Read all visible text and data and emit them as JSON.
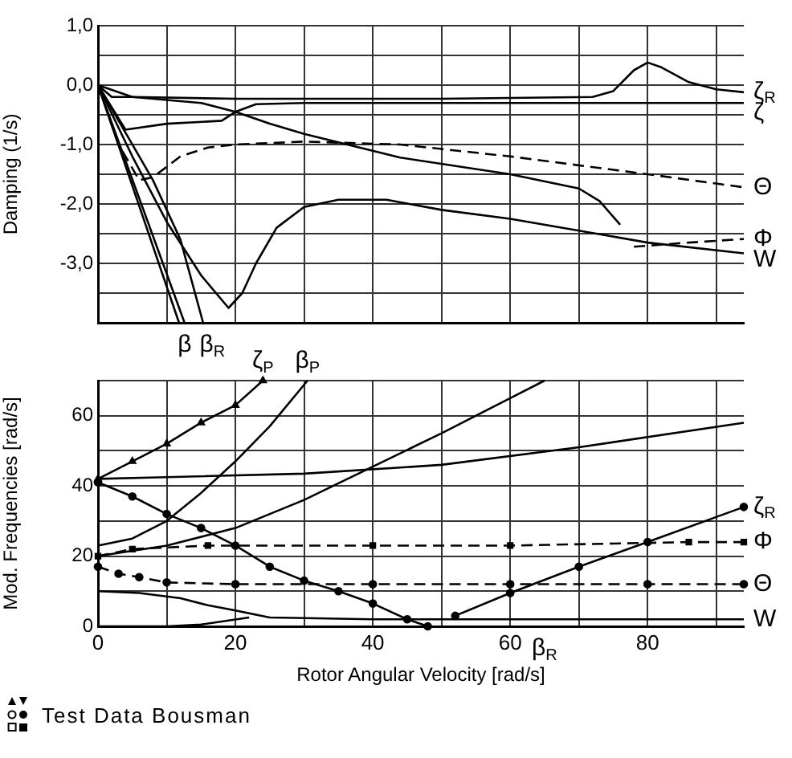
{
  "chart_data": [
    {
      "type": "line",
      "ylabel": "Damping (1/s)",
      "xlim": [
        0,
        94
      ],
      "ylim": [
        -4,
        1
      ],
      "tick_labels": "y",
      "grid": true,
      "xticks": [
        0,
        10,
        20,
        30,
        40,
        50,
        60,
        70,
        80,
        90
      ],
      "yticks": [
        {
          "value": 1,
          "label": "1,0"
        },
        {
          "value": 0.5,
          "label": null
        },
        {
          "value": 0,
          "label": "0,0"
        },
        {
          "value": -0.5,
          "label": null
        },
        {
          "value": -1,
          "label": "-1,0"
        },
        {
          "value": -1.5,
          "label": null
        },
        {
          "value": -2,
          "label": "-2,0"
        },
        {
          "value": -2.5,
          "label": null
        },
        {
          "value": -3,
          "label": "-3,0"
        },
        {
          "value": -3.5,
          "label": null
        },
        {
          "value": -4,
          "label": null
        }
      ],
      "series": [
        {
          "name": "ζ$_{R}$",
          "color": "#000000",
          "x": [
            0,
            2,
            5,
            20,
            50,
            72,
            75,
            78,
            80,
            82,
            86,
            90,
            94
          ],
          "values": [
            0,
            -0.2,
            -0.2,
            -0.23,
            -0.23,
            -0.2,
            -0.1,
            0.25,
            0.38,
            0.3,
            0.05,
            -0.07,
            -0.12
          ]
        },
        {
          "name": "ζ",
          "color": "#000000",
          "x": [
            0,
            4,
            10,
            18,
            20,
            23,
            30,
            94
          ],
          "values": [
            0,
            -0.75,
            -0.65,
            -0.6,
            -0.45,
            -0.32,
            -0.3,
            -0.3
          ]
        },
        {
          "color": "#000000",
          "x": [
            0,
            5,
            15,
            20,
            25,
            30,
            44,
            60,
            70,
            73,
            76
          ],
          "values": [
            0,
            -0.2,
            -0.3,
            -0.45,
            -0.65,
            -0.82,
            -1.22,
            -1.5,
            -1.74,
            -1.95,
            -2.35
          ]
        },
        {
          "name": "Θ",
          "color": "#000000",
          "line_style": "dashed",
          "x": [
            0,
            3,
            6,
            8,
            12,
            16,
            20,
            30,
            44,
            60,
            80,
            94
          ],
          "values": [
            0,
            -1,
            -1.6,
            -1.55,
            -1.2,
            -1.05,
            -1,
            -0.95,
            -1,
            -1.2,
            -1.5,
            -1.72
          ]
        },
        {
          "name": "Φ",
          "color": "#000000",
          "line_style": "dashed",
          "x": [
            78,
            86,
            94
          ],
          "values": [
            -2.72,
            -2.65,
            -2.59
          ]
        },
        {
          "name": "W",
          "color": "#000000",
          "x": [
            0,
            5,
            10,
            15,
            19,
            21,
            23,
            26,
            30,
            35,
            42,
            50,
            60,
            70,
            80,
            94
          ],
          "values": [
            0,
            -1.2,
            -2.3,
            -3.2,
            -3.75,
            -3.5,
            -3,
            -2.4,
            -2.05,
            -1.93,
            -1.93,
            -2.1,
            -2.25,
            -2.45,
            -2.65,
            -2.83
          ]
        },
        {
          "color": "#000000",
          "x": [
            0,
            11.8
          ],
          "values": [
            0,
            -4
          ]
        },
        {
          "name": "β",
          "color": "#000000",
          "x": [
            0,
            12.6
          ],
          "values": [
            0,
            -4
          ]
        },
        {
          "name": "β$_{R}$",
          "color": "#000000",
          "x": [
            0,
            4,
            8,
            12,
            15.3
          ],
          "values": [
            0,
            -0.8,
            -1.6,
            -2.6,
            -4
          ]
        }
      ]
    },
    {
      "type": "line",
      "xlabel": "Rotor Angular Velocity [rad/s]",
      "ylabel": "Mod. Frequencies [rad/s]",
      "xlim": [
        0,
        94
      ],
      "ylim": [
        0,
        70
      ],
      "grid": true,
      "xticks": [
        0,
        {
          "value": 10,
          "label": null
        },
        20,
        {
          "value": 30,
          "label": null
        },
        40,
        {
          "value": 50,
          "label": null
        },
        60,
        {
          "value": 70,
          "label": null
        },
        80,
        {
          "value": 90,
          "label": null
        }
      ],
      "yticks": [
        0,
        {
          "value": 10,
          "label": null
        },
        20,
        {
          "value": 30,
          "label": null
        },
        40,
        {
          "value": 50,
          "label": null
        },
        60,
        {
          "value": 70,
          "label": null
        }
      ],
      "series": [
        {
          "name": "ζ$_{P}$",
          "color": "#000000",
          "marker": "triangle",
          "x": [
            0,
            5,
            10,
            15,
            20,
            24
          ],
          "values": [
            42,
            47,
            52,
            58,
            63,
            70
          ]
        },
        {
          "name": "β$_{P}$",
          "color": "#000000",
          "x": [
            0,
            5,
            10,
            15,
            20,
            25,
            30.5
          ],
          "values": [
            23,
            25,
            30,
            38,
            47,
            57,
            70
          ]
        },
        {
          "color": "#000000",
          "x": [
            0,
            10,
            20,
            30,
            40,
            50,
            60,
            65
          ],
          "values": [
            20,
            23,
            28,
            36,
            45.5,
            55,
            65,
            70
          ]
        },
        {
          "color": "#000000",
          "x": [
            0,
            10,
            30,
            50,
            70,
            94
          ],
          "values": [
            42,
            42.5,
            43.5,
            46,
            51,
            58
          ]
        },
        {
          "color": "#000000",
          "marker": "circle",
          "x": [
            0,
            5,
            10,
            15,
            20,
            25,
            30,
            35,
            40,
            45,
            48
          ],
          "values": [
            41,
            37,
            32,
            28,
            23,
            17,
            13,
            10,
            6.5,
            2,
            0
          ]
        },
        {
          "name": "ζ$_{R}$",
          "color": "#000000",
          "marker": "circle",
          "x": [
            52,
            60,
            70,
            80,
            94
          ],
          "values": [
            3,
            9.5,
            17,
            24,
            34
          ]
        },
        {
          "name": "Φ",
          "color": "#000000",
          "line_style": "dashed",
          "marker": "square",
          "x": [
            0,
            5,
            16,
            40,
            60,
            86,
            94
          ],
          "values": [
            20,
            22,
            23,
            23,
            23,
            24,
            24
          ]
        },
        {
          "name": "Θ",
          "color": "#000000",
          "line_style": "dashed",
          "marker": "circle",
          "x": [
            0,
            3,
            6,
            10,
            20,
            40,
            60,
            80,
            94
          ],
          "values": [
            17,
            15,
            14,
            12.5,
            12,
            12,
            12,
            12,
            12
          ]
        },
        {
          "name": "W",
          "color": "#000000",
          "x": [
            0,
            6,
            12,
            16,
            20,
            25,
            40,
            94
          ],
          "values": [
            10,
            9.5,
            8,
            6,
            4.5,
            2.5,
            2,
            2
          ]
        },
        {
          "color": "#000000",
          "x": [
            0,
            10,
            15,
            22
          ],
          "values": [
            0,
            0,
            0.5,
            2.5
          ]
        }
      ],
      "annotations": [
        {
          "text": "β$_{R}$",
          "x": 65,
          "y": 0
        },
        "Test Data Bousman"
      ]
    }
  ]
}
